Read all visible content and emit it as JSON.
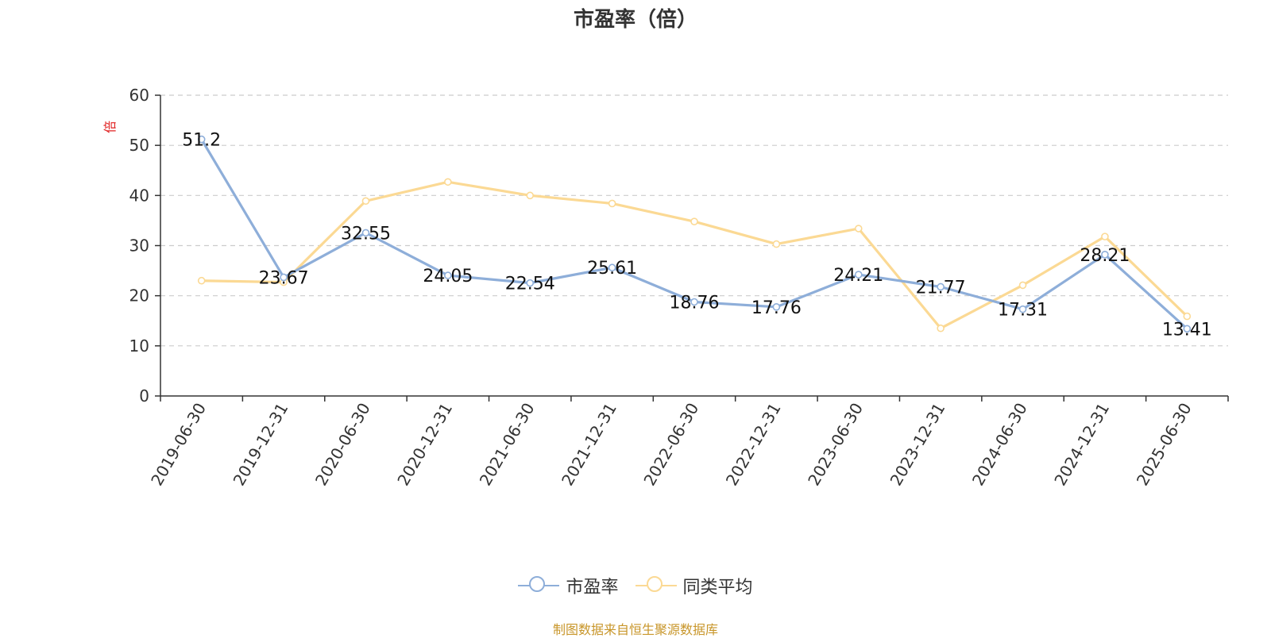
{
  "chart_data": {
    "type": "line",
    "title": "市盈率（倍）",
    "ylabel": "倍",
    "xlabel": "",
    "categories": [
      "2019-06-30",
      "2019-12-31",
      "2020-06-30",
      "2020-12-31",
      "2021-06-30",
      "2021-12-31",
      "2022-06-30",
      "2022-12-31",
      "2023-06-30",
      "2023-12-31",
      "2024-06-30",
      "2024-12-31",
      "2025-06-30"
    ],
    "ylim": [
      0,
      60
    ],
    "yticks": [
      0,
      10,
      20,
      30,
      40,
      50,
      60
    ],
    "grid": true,
    "legend_position": "bottom",
    "series": [
      {
        "name": "市盈率",
        "color": "#8eaed9",
        "values": [
          51.2,
          23.67,
          32.55,
          24.05,
          22.54,
          25.61,
          18.76,
          17.76,
          24.21,
          21.77,
          17.31,
          28.21,
          13.41
        ],
        "labels": [
          "51.2",
          "23.67",
          "32.55",
          "24.05",
          "22.54",
          "25.61",
          "18.76",
          "17.76",
          "24.21",
          "21.77",
          "17.31",
          "28.21",
          "13.41"
        ]
      },
      {
        "name": "同类平均",
        "color": "#fbd994",
        "values": [
          23.0,
          22.7,
          38.9,
          42.7,
          40.0,
          38.4,
          34.8,
          30.3,
          33.4,
          13.5,
          22.1,
          31.8,
          15.9
        ]
      }
    ]
  },
  "source_note": "制图数据来自恒生聚源数据库"
}
